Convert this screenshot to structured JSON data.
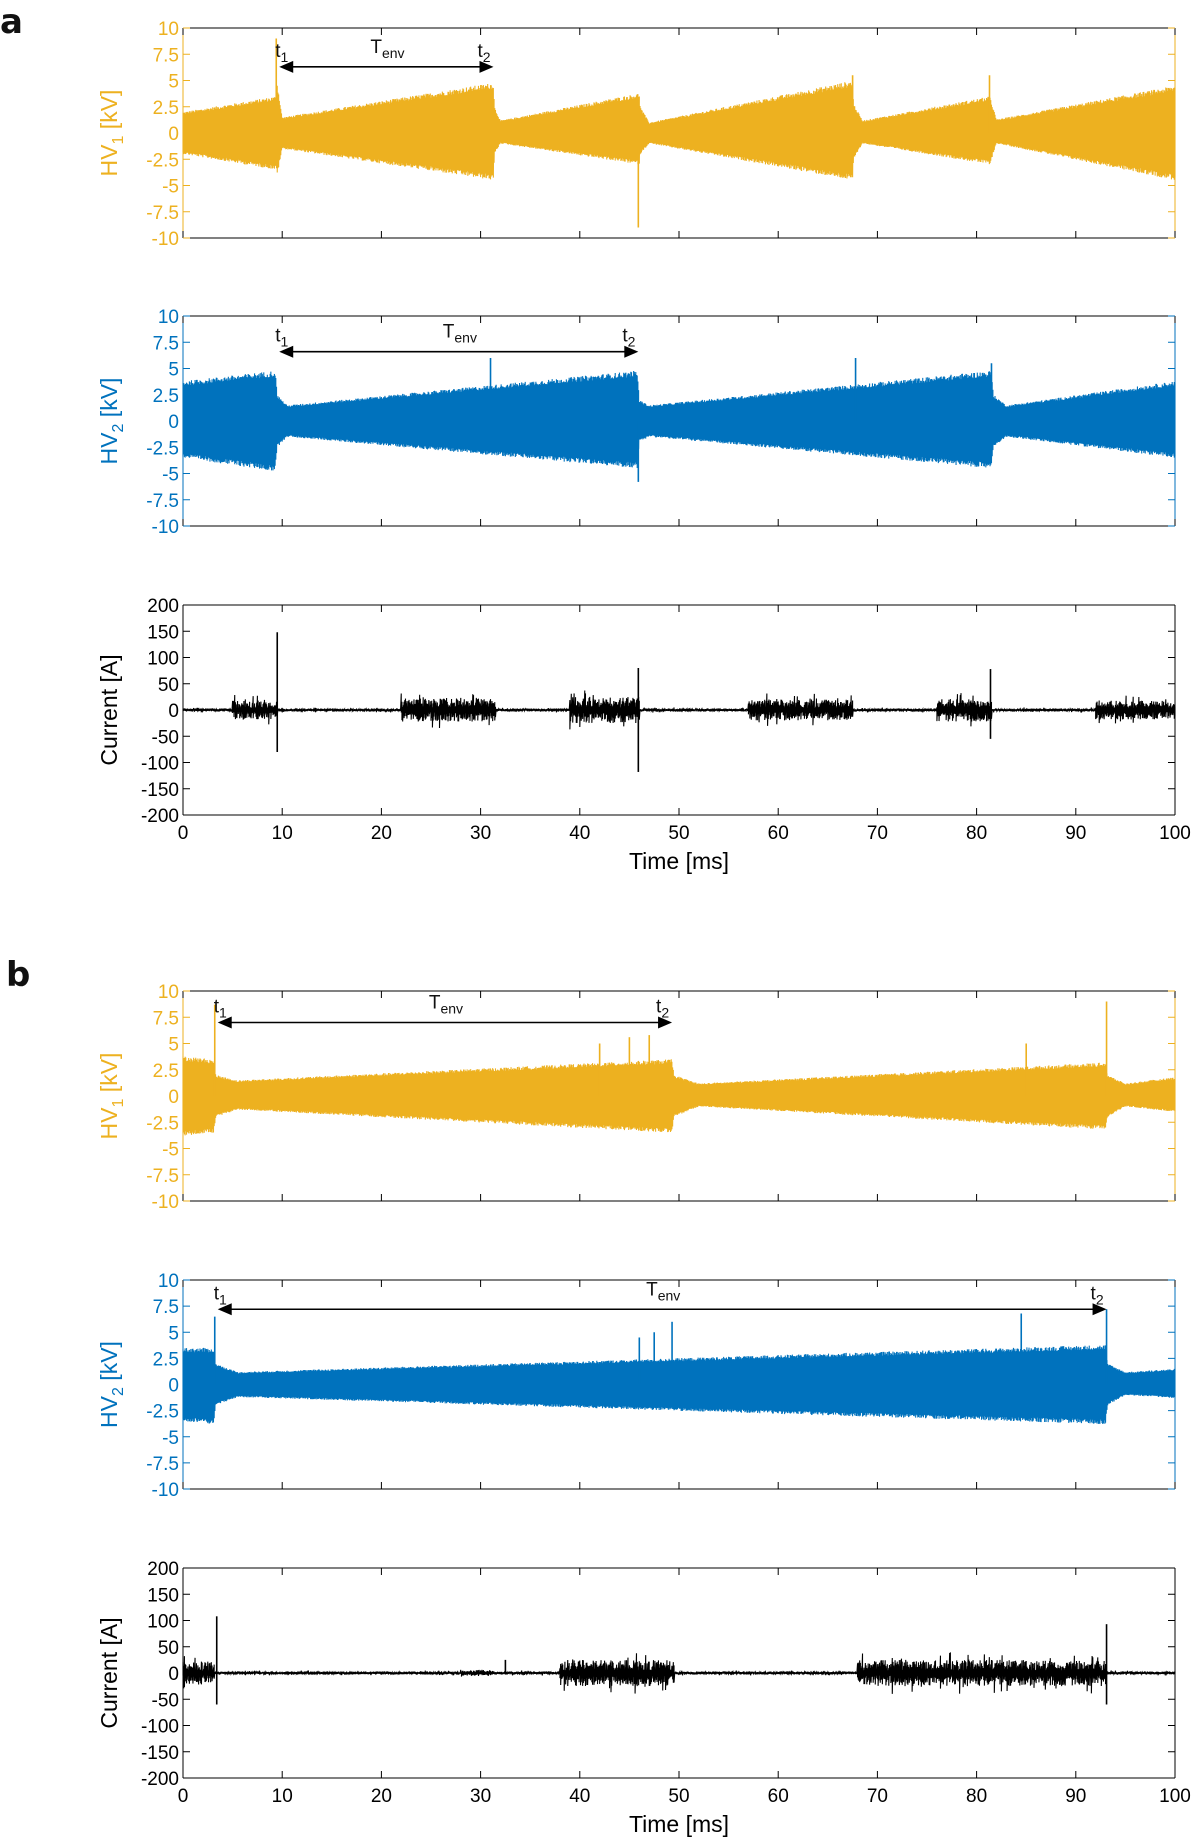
{
  "figure": {
    "panels": [
      {
        "label": "a"
      },
      {
        "label": "b"
      }
    ]
  },
  "colors": {
    "hv1": "#EDB120",
    "hv2": "#0072BD",
    "current": "#000000",
    "axis_hv1": "#EDB120",
    "axis_hv2": "#0072BD"
  },
  "chart_data": [
    {
      "id": "a-hv1",
      "panel": "a",
      "type": "line",
      "ylabel_main": "HV",
      "ylabel_sub": "1",
      "ylabel_unit": " [kV]",
      "xlim": [
        0,
        100
      ],
      "ylim": [
        -10,
        10
      ],
      "yticks": [
        10,
        7.5,
        5,
        2.5,
        0,
        -2.5,
        -5,
        -7.5,
        -10
      ],
      "ytick_labels": [
        "10",
        "7.5",
        "5",
        "2.5",
        "0",
        "-2.5",
        "-5",
        "-7.5",
        "-10"
      ],
      "show_xticklabels": false,
      "series": [
        {
          "color_key": "hv1",
          "envelope": {
            "t": [
              0,
              9.4,
              9.5,
              10,
              31.3,
              31.4,
              32,
              46,
              46.1,
              47,
              67.5,
              67.6,
              68.5,
              81.4,
              81.5,
              82,
              100
            ],
            "upper": [
              2,
              3.5,
              4.8,
              1.5,
              4.8,
              2.5,
              1.2,
              3.8,
              2.5,
              1,
              5,
              2.8,
              1.2,
              3.5,
              3,
              1.3,
              4.5
            ],
            "lower": [
              -2,
              -3.5,
              -4,
              -1.5,
              -4.5,
              -2,
              -1,
              -3,
              -2,
              -1,
              -4.5,
              -2.5,
              -1,
              -3,
              -2.5,
              -1,
              -4.5
            ]
          },
          "spikes": [
            {
              "t": 9.4,
              "y": 9
            },
            {
              "t": 45.9,
              "y": -9
            },
            {
              "t": 67.5,
              "y": 5.5
            },
            {
              "t": 81.3,
              "y": 5.5
            }
          ]
        }
      ],
      "annotations": {
        "t1": {
          "t": 9.7,
          "label_main": "t",
          "label_sub": "1"
        },
        "t2": {
          "t": 31.3,
          "label_main": "t",
          "label_sub": "2"
        },
        "tenv": {
          "label_main": "T",
          "label_sub": "env"
        },
        "arrow_y": 6.3
      }
    },
    {
      "id": "a-hv2",
      "panel": "a",
      "type": "line",
      "ylabel_main": "HV",
      "ylabel_sub": "2",
      "ylabel_unit": " [kV]",
      "xlim": [
        0,
        100
      ],
      "ylim": [
        -10,
        10
      ],
      "yticks": [
        10,
        7.5,
        5,
        2.5,
        0,
        -2.5,
        -5,
        -7.5,
        -10
      ],
      "ytick_labels": [
        "10",
        "7.5",
        "5",
        "2.5",
        "0",
        "-2.5",
        "-5",
        "-7.5",
        "-10"
      ],
      "show_xticklabels": false,
      "series": [
        {
          "color_key": "hv2",
          "envelope": {
            "t": [
              0,
              9.3,
              9.5,
              10.5,
              45.8,
              46,
              47,
              81.5,
              81.7,
              83,
              100
            ],
            "upper": [
              3.8,
              4.8,
              2.5,
              1.5,
              4.8,
              2,
              1.5,
              4.8,
              2.5,
              1.5,
              3.8
            ],
            "lower": [
              -3.5,
              -4.8,
              -2.5,
              -1.5,
              -4.5,
              -2,
              -1.5,
              -4.5,
              -2.5,
              -1.5,
              -3.5
            ]
          },
          "spikes": [
            {
              "t": 31,
              "y": 6
            },
            {
              "t": 45.9,
              "y": -5.8
            },
            {
              "t": 67.8,
              "y": 6
            },
            {
              "t": 81.5,
              "y": 5.5
            }
          ]
        }
      ],
      "annotations": {
        "t1": {
          "t": 9.7,
          "label_main": "t",
          "label_sub": "1"
        },
        "t2": {
          "t": 45.9,
          "label_main": "t",
          "label_sub": "2"
        },
        "tenv": {
          "label_main": "T",
          "label_sub": "env"
        },
        "arrow_y": 6.6
      }
    },
    {
      "id": "a-current",
      "panel": "a",
      "type": "line",
      "ylabel_main": "Current [A]",
      "ylabel_sub": "",
      "ylabel_unit": "",
      "xlim": [
        0,
        100
      ],
      "ylim": [
        -200,
        200
      ],
      "yticks": [
        200,
        150,
        100,
        50,
        0,
        -50,
        -100,
        -150,
        -200
      ],
      "ytick_labels": [
        "200",
        "150",
        "100",
        "50",
        "0",
        "-50",
        "-100",
        "-150",
        "-200"
      ],
      "show_xticklabels": true,
      "xticks": [
        0,
        10,
        20,
        30,
        40,
        50,
        60,
        70,
        80,
        90,
        100
      ],
      "xtick_labels": [
        "0",
        "10",
        "20",
        "30",
        "40",
        "50",
        "60",
        "70",
        "80",
        "90",
        "100"
      ],
      "xlabel": "Time [ms]",
      "series": [
        {
          "color_key": "current",
          "noise_bursts": [
            {
              "t0": 5,
              "t1": 9.5,
              "amp": 18
            },
            {
              "t0": 22,
              "t1": 31.5,
              "amp": 22
            },
            {
              "t0": 39,
              "t1": 46,
              "amp": 25
            },
            {
              "t0": 57,
              "t1": 67.5,
              "amp": 20
            },
            {
              "t0": 76,
              "t1": 81.5,
              "amp": 22
            },
            {
              "t0": 92,
              "t1": 100,
              "amp": 18
            }
          ],
          "baseline_noise": 3,
          "spikes": [
            {
              "t": 9.5,
              "y": 148
            },
            {
              "t": 9.5,
              "y": -80
            },
            {
              "t": 45.9,
              "y": 80
            },
            {
              "t": 45.9,
              "y": -118
            },
            {
              "t": 81.4,
              "y": 78
            },
            {
              "t": 81.4,
              "y": -55
            }
          ]
        }
      ]
    },
    {
      "id": "b-hv1",
      "panel": "b",
      "type": "line",
      "ylabel_main": "HV",
      "ylabel_sub": "1",
      "ylabel_unit": " [kV]",
      "xlim": [
        0,
        100
      ],
      "ylim": [
        -10,
        10
      ],
      "yticks": [
        10,
        7.5,
        5,
        2.5,
        0,
        -2.5,
        -5,
        -7.5,
        -10
      ],
      "ytick_labels": [
        "10",
        "7.5",
        "5",
        "2.5",
        "0",
        "-2.5",
        "-5",
        "-7.5",
        "-10"
      ],
      "show_xticklabels": false,
      "series": [
        {
          "color_key": "hv1",
          "envelope": {
            "t": [
              0,
              3.1,
              3.3,
              5.5,
              49.3,
              49.5,
              52,
              93,
              93.2,
              95,
              100
            ],
            "upper": [
              3.8,
              3.5,
              2,
              1.5,
              3.5,
              2,
              1.2,
              3.2,
              2,
              1.2,
              1.8
            ],
            "lower": [
              -3.8,
              -3.5,
              -2,
              -1.3,
              -3.5,
              -2,
              -1,
              -3.2,
              -2,
              -1,
              -1.5
            ]
          },
          "spikes": [
            {
              "t": 3.2,
              "y": 8.7
            },
            {
              "t": 42,
              "y": 5
            },
            {
              "t": 45,
              "y": 5.6
            },
            {
              "t": 47,
              "y": 5.8
            },
            {
              "t": 85,
              "y": 5
            },
            {
              "t": 93.1,
              "y": 9
            }
          ]
        }
      ],
      "annotations": {
        "t1": {
          "t": 3.5,
          "label_main": "t",
          "label_sub": "1"
        },
        "t2": {
          "t": 49.3,
          "label_main": "t",
          "label_sub": "2"
        },
        "tenv": {
          "label_main": "T",
          "label_sub": "env"
        },
        "arrow_y": 7
      }
    },
    {
      "id": "b-hv2",
      "panel": "b",
      "type": "line",
      "ylabel_main": "HV",
      "ylabel_sub": "2",
      "ylabel_unit": " [kV]",
      "xlim": [
        0,
        100
      ],
      "ylim": [
        -10,
        10
      ],
      "yticks": [
        10,
        7.5,
        5,
        2.5,
        0,
        -2.5,
        -5,
        -7.5,
        -10
      ],
      "ytick_labels": [
        "10",
        "7.5",
        "5",
        "2.5",
        "0",
        "-2.5",
        "-5",
        "-7.5",
        "-10"
      ],
      "show_xticklabels": false,
      "series": [
        {
          "color_key": "hv2",
          "envelope": {
            "t": [
              0,
              3.1,
              3.3,
              5.5,
              93,
              93.2,
              95,
              100
            ],
            "upper": [
              3.5,
              3.5,
              2,
              1.2,
              3.8,
              2,
              1.2,
              1.5
            ],
            "lower": [
              -3.5,
              -3.8,
              -2,
              -1.2,
              -3.8,
              -2,
              -1,
              -1.3
            ]
          },
          "spikes": [
            {
              "t": 3.2,
              "y": 6.5
            },
            {
              "t": 46,
              "y": 4.5
            },
            {
              "t": 47.5,
              "y": 5
            },
            {
              "t": 49.3,
              "y": 6
            },
            {
              "t": 84.5,
              "y": 6.8
            },
            {
              "t": 93.1,
              "y": 7.2
            }
          ]
        }
      ],
      "annotations": {
        "t1": {
          "t": 3.5,
          "label_main": "t",
          "label_sub": "1"
        },
        "t2": {
          "t": 93.1,
          "label_main": "t",
          "label_sub": "2"
        },
        "tenv": {
          "label_main": "T",
          "label_sub": "env"
        },
        "arrow_y": 7.2
      }
    },
    {
      "id": "b-current",
      "panel": "b",
      "type": "line",
      "ylabel_main": "Current [A]",
      "ylabel_sub": "",
      "ylabel_unit": "",
      "xlim": [
        0,
        100
      ],
      "ylim": [
        -200,
        200
      ],
      "yticks": [
        200,
        150,
        100,
        50,
        0,
        -50,
        -100,
        -150,
        -200
      ],
      "ytick_labels": [
        "200",
        "150",
        "100",
        "50",
        "0",
        "-50",
        "-100",
        "-150",
        "-200"
      ],
      "show_xticklabels": true,
      "xticks": [
        0,
        10,
        20,
        30,
        40,
        50,
        60,
        70,
        80,
        90,
        100
      ],
      "xtick_labels": [
        "0",
        "10",
        "20",
        "30",
        "40",
        "50",
        "60",
        "70",
        "80",
        "90",
        "100"
      ],
      "xlabel": "Time [ms]",
      "series": [
        {
          "color_key": "current",
          "noise_bursts": [
            {
              "t0": 0,
              "t1": 3.2,
              "amp": 22
            },
            {
              "t0": 28,
              "t1": 31,
              "amp": 6
            },
            {
              "t0": 38,
              "t1": 49.5,
              "amp": 25
            },
            {
              "t0": 68,
              "t1": 93,
              "amp": 25
            }
          ],
          "baseline_noise": 3,
          "spikes": [
            {
              "t": 3.4,
              "y": 108
            },
            {
              "t": 3.4,
              "y": -60
            },
            {
              "t": 32.5,
              "y": 25
            },
            {
              "t": 93.1,
              "y": 93
            },
            {
              "t": 93.1,
              "y": -60
            }
          ]
        }
      ]
    }
  ]
}
